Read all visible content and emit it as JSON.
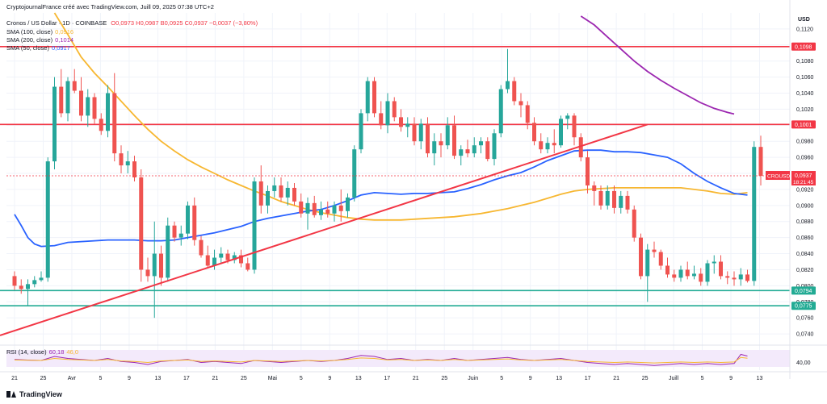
{
  "header": {
    "attribution": "CryptojournalFrance créé avec TradingView.com, Juill 09, 2025 07:38 UTC+2",
    "symbol_line": "Cronos / US Dollar · 1D · COINBASE",
    "ohlc": "O0,0973 H0,0987 B0,0925 C0,0937 −0,0037 (−3,80%)",
    "indicators": [
      {
        "label": "SMA (100, close)",
        "value": "0,0916",
        "color": "#f7b731"
      },
      {
        "label": "SMA (200, close)",
        "value": "0,1014",
        "color": "#9c27b0"
      },
      {
        "label": "SMA (50, close)",
        "value": "0,0917",
        "color": "#2962ff"
      }
    ]
  },
  "axis": {
    "currency": "USD",
    "y_ticks": [
      "0,1120",
      "0,1100",
      "0,1080",
      "0,1060",
      "0,1040",
      "0,1020",
      "0,1000",
      "0,0980",
      "0,0960",
      "0,0940",
      "0,0920",
      "0,0900",
      "0,0880",
      "0,0860",
      "0,0840",
      "0,0820",
      "0,0800",
      "0,0780",
      "0,0760",
      "0,0740"
    ],
    "y_range": [
      0.0727,
      0.114
    ],
    "x_labels": [
      "21",
      "25",
      "Avr",
      "5",
      "9",
      "13",
      "17",
      "21",
      "25",
      "Mai",
      "5",
      "9",
      "13",
      "17",
      "21",
      "25",
      "Juin",
      "5",
      "9",
      "13",
      "17",
      "21",
      "25",
      "Juill",
      "5",
      "9",
      "13"
    ],
    "rsi_tick": "40,00"
  },
  "levels": [
    {
      "value": 0.1098,
      "label": "0,1098",
      "color": "#f23645"
    },
    {
      "value": 0.1001,
      "label": "0,1001",
      "color": "#f23645"
    },
    {
      "value": 0.0794,
      "label": "0,0794",
      "color": "#22ab94"
    },
    {
      "value": 0.0775,
      "label": "0,0775",
      "color": "#22ab94"
    }
  ],
  "price_tag": {
    "symbol": "CROUSD",
    "price": "0,0937",
    "countdown": "18:21:45",
    "color": "#f23645"
  },
  "rsi": {
    "label": "RSI (14, close)",
    "value": "60,18",
    "value2": "46,0"
  },
  "trendline": {
    "from": [
      0,
      0.0744
    ],
    "to": [
      95,
      0.1001
    ],
    "color": "#f23645"
  },
  "chart_data": {
    "type": "candlestick",
    "title": "Cronos / US Dollar · 1D · COINBASE",
    "colors": {
      "up": "#26a69a",
      "down": "#ef5350",
      "sma50": "#2962ff",
      "sma100": "#f7b731",
      "sma200": "#9c27b0"
    },
    "candles": [
      [
        0.0812,
        0.0818,
        0.0795,
        0.08
      ],
      [
        0.08,
        0.0808,
        0.079,
        0.0796
      ],
      [
        0.0796,
        0.0808,
        0.0775,
        0.0802
      ],
      [
        0.0802,
        0.0812,
        0.0798,
        0.0807
      ],
      [
        0.0807,
        0.0818,
        0.0805,
        0.081
      ],
      [
        0.081,
        0.096,
        0.0805,
        0.0955
      ],
      [
        0.0955,
        0.106,
        0.0945,
        0.1048
      ],
      [
        0.1048,
        0.107,
        0.101,
        0.1015
      ],
      [
        0.1015,
        0.106,
        0.1005,
        0.1055
      ],
      [
        0.1055,
        0.107,
        0.104,
        0.1043
      ],
      [
        0.1043,
        0.106,
        0.1005,
        0.1012
      ],
      [
        0.1012,
        0.1045,
        0.0998,
        0.1035
      ],
      [
        0.1035,
        0.104,
        0.1002,
        0.1008
      ],
      [
        0.1008,
        0.1015,
        0.0988,
        0.0993
      ],
      [
        0.0993,
        0.105,
        0.0985,
        0.104
      ],
      [
        0.104,
        0.1065,
        0.0955,
        0.0965
      ],
      [
        0.0965,
        0.0975,
        0.094,
        0.095
      ],
      [
        0.095,
        0.0968,
        0.094,
        0.0955
      ],
      [
        0.0955,
        0.0962,
        0.093,
        0.0935
      ],
      [
        0.0935,
        0.0945,
        0.0805,
        0.082
      ],
      [
        0.082,
        0.0835,
        0.0805,
        0.0812
      ],
      [
        0.0812,
        0.088,
        0.076,
        0.084
      ],
      [
        0.084,
        0.085,
        0.08,
        0.081
      ],
      [
        0.081,
        0.0885,
        0.0805,
        0.0875
      ],
      [
        0.0875,
        0.088,
        0.0855,
        0.086
      ],
      [
        0.086,
        0.0875,
        0.085,
        0.0865
      ],
      [
        0.0865,
        0.0905,
        0.0858,
        0.09
      ],
      [
        0.09,
        0.091,
        0.085,
        0.0857
      ],
      [
        0.0857,
        0.0862,
        0.0835,
        0.0838
      ],
      [
        0.0838,
        0.085,
        0.0822,
        0.0825
      ],
      [
        0.0825,
        0.0845,
        0.082,
        0.0835
      ],
      [
        0.0835,
        0.0848,
        0.0828,
        0.084
      ],
      [
        0.084,
        0.0845,
        0.0828,
        0.0832
      ],
      [
        0.0832,
        0.0842,
        0.0828,
        0.0838
      ],
      [
        0.0838,
        0.0845,
        0.0823,
        0.0828
      ],
      [
        0.0828,
        0.0835,
        0.0818,
        0.082
      ],
      [
        0.082,
        0.0935,
        0.0815,
        0.093
      ],
      [
        0.093,
        0.095,
        0.089,
        0.09
      ],
      [
        0.09,
        0.0925,
        0.089,
        0.0918
      ],
      [
        0.0918,
        0.0935,
        0.091,
        0.0925
      ],
      [
        0.0925,
        0.0935,
        0.0905,
        0.091
      ],
      [
        0.091,
        0.093,
        0.09,
        0.0922
      ],
      [
        0.0922,
        0.0928,
        0.09,
        0.0905
      ],
      [
        0.0905,
        0.0915,
        0.0885,
        0.089
      ],
      [
        0.089,
        0.091,
        0.087,
        0.0903
      ],
      [
        0.0903,
        0.0912,
        0.0885,
        0.0888
      ],
      [
        0.0888,
        0.0905,
        0.0882,
        0.0895
      ],
      [
        0.0895,
        0.0905,
        0.0885,
        0.089
      ],
      [
        0.089,
        0.0905,
        0.088,
        0.09
      ],
      [
        0.09,
        0.092,
        0.088,
        0.0893
      ],
      [
        0.0893,
        0.0915,
        0.0885,
        0.091
      ],
      [
        0.091,
        0.0975,
        0.0905,
        0.097
      ],
      [
        0.097,
        0.102,
        0.0965,
        0.1015
      ],
      [
        0.1015,
        0.106,
        0.1005,
        0.1055
      ],
      [
        0.1055,
        0.106,
        0.101,
        0.1015
      ],
      [
        0.1015,
        0.103,
        0.0995,
        0.1
      ],
      [
        0.1,
        0.104,
        0.099,
        0.103
      ],
      [
        0.103,
        0.1035,
        0.1005,
        0.101
      ],
      [
        0.101,
        0.102,
        0.0992,
        0.0998
      ],
      [
        0.0998,
        0.101,
        0.0985,
        0.1002
      ],
      [
        0.1002,
        0.101,
        0.0975,
        0.098
      ],
      [
        0.098,
        0.1008,
        0.097,
        0.1002
      ],
      [
        0.1002,
        0.101,
        0.096,
        0.0965
      ],
      [
        0.0965,
        0.099,
        0.095,
        0.098
      ],
      [
        0.098,
        0.099,
        0.096,
        0.0975
      ],
      [
        0.0975,
        0.101,
        0.097,
        0.1
      ],
      [
        0.1,
        0.1012,
        0.0958,
        0.0962
      ],
      [
        0.0962,
        0.0975,
        0.095,
        0.097
      ],
      [
        0.097,
        0.0982,
        0.096,
        0.0965
      ],
      [
        0.0965,
        0.0985,
        0.096,
        0.0975
      ],
      [
        0.0975,
        0.0985,
        0.0965,
        0.098
      ],
      [
        0.098,
        0.0985,
        0.0955,
        0.0958
      ],
      [
        0.0958,
        0.0995,
        0.095,
        0.099
      ],
      [
        0.099,
        0.105,
        0.0985,
        0.1045
      ],
      [
        0.1045,
        0.1095,
        0.104,
        0.1055
      ],
      [
        0.1055,
        0.106,
        0.1025,
        0.103
      ],
      [
        0.103,
        0.104,
        0.101,
        0.1025
      ],
      [
        0.1025,
        0.103,
        0.0995,
        0.1003
      ],
      [
        0.1003,
        0.101,
        0.0975,
        0.098
      ],
      [
        0.098,
        0.099,
        0.0965,
        0.097
      ],
      [
        0.097,
        0.0985,
        0.0965,
        0.0978
      ],
      [
        0.0978,
        0.0995,
        0.0965,
        0.0975
      ],
      [
        0.0975,
        0.1012,
        0.0972,
        0.1008
      ],
      [
        0.1008,
        0.1015,
        0.0995,
        0.1012
      ],
      [
        0.1012,
        0.1015,
        0.0975,
        0.0985
      ],
      [
        0.0985,
        0.099,
        0.0955,
        0.096
      ],
      [
        0.096,
        0.0968,
        0.0915,
        0.0925
      ],
      [
        0.0925,
        0.093,
        0.09,
        0.0918
      ],
      [
        0.0918,
        0.0925,
        0.0895,
        0.09
      ],
      [
        0.09,
        0.0925,
        0.0895,
        0.0918
      ],
      [
        0.0918,
        0.0925,
        0.089,
        0.0897
      ],
      [
        0.0897,
        0.0918,
        0.089,
        0.0912
      ],
      [
        0.0912,
        0.0918,
        0.089,
        0.0895
      ],
      [
        0.0895,
        0.09,
        0.0855,
        0.086
      ],
      [
        0.086,
        0.0865,
        0.0808,
        0.0812
      ],
      [
        0.0812,
        0.0852,
        0.078,
        0.0845
      ],
      [
        0.0845,
        0.0855,
        0.0835,
        0.0842
      ],
      [
        0.0842,
        0.0845,
        0.082,
        0.0825
      ],
      [
        0.0825,
        0.0835,
        0.081,
        0.0814
      ],
      [
        0.0814,
        0.082,
        0.0805,
        0.081
      ],
      [
        0.081,
        0.0825,
        0.0805,
        0.082
      ],
      [
        0.082,
        0.083,
        0.0808,
        0.0812
      ],
      [
        0.0812,
        0.0825,
        0.0808,
        0.0815
      ],
      [
        0.0815,
        0.0822,
        0.08,
        0.0805
      ],
      [
        0.0805,
        0.0832,
        0.08,
        0.0828
      ],
      [
        0.0828,
        0.0838,
        0.0815,
        0.083
      ],
      [
        0.083,
        0.0838,
        0.0808,
        0.0812
      ],
      [
        0.0812,
        0.0818,
        0.0802,
        0.081
      ],
      [
        0.081,
        0.0818,
        0.08,
        0.0808
      ],
      [
        0.0808,
        0.0822,
        0.08,
        0.0814
      ],
      [
        0.0814,
        0.082,
        0.0804,
        0.0806
      ],
      [
        0.0806,
        0.098,
        0.08,
        0.0973
      ],
      [
        0.0973,
        0.0987,
        0.0925,
        0.0937
      ]
    ],
    "sma50": [
      [
        0,
        0.0889
      ],
      [
        1,
        0.0875
      ],
      [
        2,
        0.086
      ],
      [
        3,
        0.0852
      ],
      [
        4,
        0.0849
      ],
      [
        6,
        0.085
      ],
      [
        8,
        0.0854
      ],
      [
        10,
        0.0855
      ],
      [
        12,
        0.0856
      ],
      [
        14,
        0.0857
      ],
      [
        16,
        0.0857
      ],
      [
        18,
        0.0857
      ],
      [
        20,
        0.0856
      ],
      [
        22,
        0.0856
      ],
      [
        24,
        0.0857
      ],
      [
        26,
        0.086
      ],
      [
        28,
        0.0863
      ],
      [
        30,
        0.0866
      ],
      [
        32,
        0.087
      ],
      [
        34,
        0.0874
      ],
      [
        36,
        0.088
      ],
      [
        38,
        0.0884
      ],
      [
        40,
        0.0887
      ],
      [
        42,
        0.089
      ],
      [
        44,
        0.0893
      ],
      [
        46,
        0.0895
      ],
      [
        48,
        0.09
      ],
      [
        50,
        0.0906
      ],
      [
        52,
        0.0913
      ],
      [
        54,
        0.0916
      ],
      [
        56,
        0.0915
      ],
      [
        58,
        0.0914
      ],
      [
        60,
        0.0915
      ],
      [
        62,
        0.0915
      ],
      [
        64,
        0.0916
      ],
      [
        66,
        0.0917
      ],
      [
        68,
        0.0921
      ],
      [
        70,
        0.0926
      ],
      [
        72,
        0.0932
      ],
      [
        74,
        0.0937
      ],
      [
        76,
        0.0941
      ],
      [
        78,
        0.0948
      ],
      [
        80,
        0.0956
      ],
      [
        82,
        0.0962
      ],
      [
        84,
        0.0968
      ],
      [
        86,
        0.0969
      ],
      [
        88,
        0.0969
      ],
      [
        90,
        0.0967
      ],
      [
        92,
        0.0967
      ],
      [
        94,
        0.0966
      ],
      [
        96,
        0.0963
      ],
      [
        98,
        0.096
      ],
      [
        100,
        0.0952
      ],
      [
        102,
        0.094
      ],
      [
        104,
        0.093
      ],
      [
        106,
        0.0922
      ],
      [
        108,
        0.0915
      ],
      [
        110,
        0.0913
      ]
    ],
    "sma100": [
      [
        6,
        0.114
      ],
      [
        8,
        0.1113
      ],
      [
        10,
        0.1085
      ],
      [
        12,
        0.1065
      ],
      [
        14,
        0.1048
      ],
      [
        16,
        0.103
      ],
      [
        18,
        0.1012
      ],
      [
        20,
        0.0995
      ],
      [
        22,
        0.098
      ],
      [
        24,
        0.0968
      ],
      [
        26,
        0.0957
      ],
      [
        28,
        0.0948
      ],
      [
        30,
        0.094
      ],
      [
        32,
        0.0932
      ],
      [
        34,
        0.0925
      ],
      [
        36,
        0.0918
      ],
      [
        38,
        0.0912
      ],
      [
        40,
        0.0905
      ],
      [
        42,
        0.09
      ],
      [
        44,
        0.0895
      ],
      [
        46,
        0.0891
      ],
      [
        48,
        0.0888
      ],
      [
        50,
        0.0885
      ],
      [
        52,
        0.0883
      ],
      [
        54,
        0.0882
      ],
      [
        56,
        0.0882
      ],
      [
        58,
        0.0882
      ],
      [
        60,
        0.0883
      ],
      [
        62,
        0.0884
      ],
      [
        64,
        0.0885
      ],
      [
        66,
        0.0886
      ],
      [
        68,
        0.0888
      ],
      [
        70,
        0.089
      ],
      [
        72,
        0.0893
      ],
      [
        74,
        0.0896
      ],
      [
        76,
        0.09
      ],
      [
        78,
        0.0904
      ],
      [
        80,
        0.0909
      ],
      [
        82,
        0.0914
      ],
      [
        84,
        0.0918
      ],
      [
        86,
        0.092
      ],
      [
        88,
        0.0921
      ],
      [
        90,
        0.0922
      ],
      [
        92,
        0.0922
      ],
      [
        94,
        0.0922
      ],
      [
        96,
        0.0922
      ],
      [
        98,
        0.0922
      ],
      [
        100,
        0.0922
      ],
      [
        102,
        0.092
      ],
      [
        104,
        0.0918
      ],
      [
        106,
        0.0915
      ],
      [
        108,
        0.0914
      ],
      [
        110,
        0.0916
      ]
    ],
    "sma200": [
      [
        85,
        0.1136
      ],
      [
        87,
        0.1125
      ],
      [
        89,
        0.111
      ],
      [
        91,
        0.1095
      ],
      [
        93,
        0.108
      ],
      [
        95,
        0.1067
      ],
      [
        97,
        0.1056
      ],
      [
        99,
        0.1046
      ],
      [
        101,
        0.1037
      ],
      [
        103,
        0.1028
      ],
      [
        105,
        0.1021
      ],
      [
        107,
        0.1016
      ],
      [
        108,
        0.1014
      ]
    ],
    "rsi_series": [
      [
        0,
        0.45
      ],
      [
        2,
        0.42
      ],
      [
        4,
        0.4
      ],
      [
        6,
        0.6
      ],
      [
        8,
        0.5
      ],
      [
        10,
        0.45
      ],
      [
        12,
        0.4
      ],
      [
        14,
        0.5
      ],
      [
        16,
        0.35
      ],
      [
        18,
        0.3
      ],
      [
        20,
        0.2
      ],
      [
        22,
        0.35
      ],
      [
        24,
        0.4
      ],
      [
        26,
        0.45
      ],
      [
        28,
        0.3
      ],
      [
        30,
        0.35
      ],
      [
        32,
        0.3
      ],
      [
        34,
        0.25
      ],
      [
        36,
        0.4
      ],
      [
        38,
        0.35
      ],
      [
        40,
        0.3
      ],
      [
        42,
        0.35
      ],
      [
        44,
        0.4
      ],
      [
        46,
        0.35
      ],
      [
        48,
        0.4
      ],
      [
        50,
        0.5
      ],
      [
        52,
        0.65
      ],
      [
        54,
        0.6
      ],
      [
        56,
        0.45
      ],
      [
        58,
        0.5
      ],
      [
        60,
        0.4
      ],
      [
        62,
        0.45
      ],
      [
        64,
        0.4
      ],
      [
        66,
        0.5
      ],
      [
        68,
        0.4
      ],
      [
        70,
        0.45
      ],
      [
        72,
        0.5
      ],
      [
        74,
        0.55
      ],
      [
        76,
        0.45
      ],
      [
        78,
        0.4
      ],
      [
        80,
        0.45
      ],
      [
        82,
        0.5
      ],
      [
        84,
        0.4
      ],
      [
        86,
        0.3
      ],
      [
        88,
        0.25
      ],
      [
        90,
        0.2
      ],
      [
        92,
        0.25
      ],
      [
        94,
        0.2
      ],
      [
        96,
        0.15
      ],
      [
        98,
        0.2
      ],
      [
        100,
        0.25
      ],
      [
        102,
        0.2
      ],
      [
        104,
        0.25
      ],
      [
        106,
        0.2
      ],
      [
        108,
        0.25
      ],
      [
        109,
        0.7
      ],
      [
        110,
        0.62
      ]
    ]
  }
}
